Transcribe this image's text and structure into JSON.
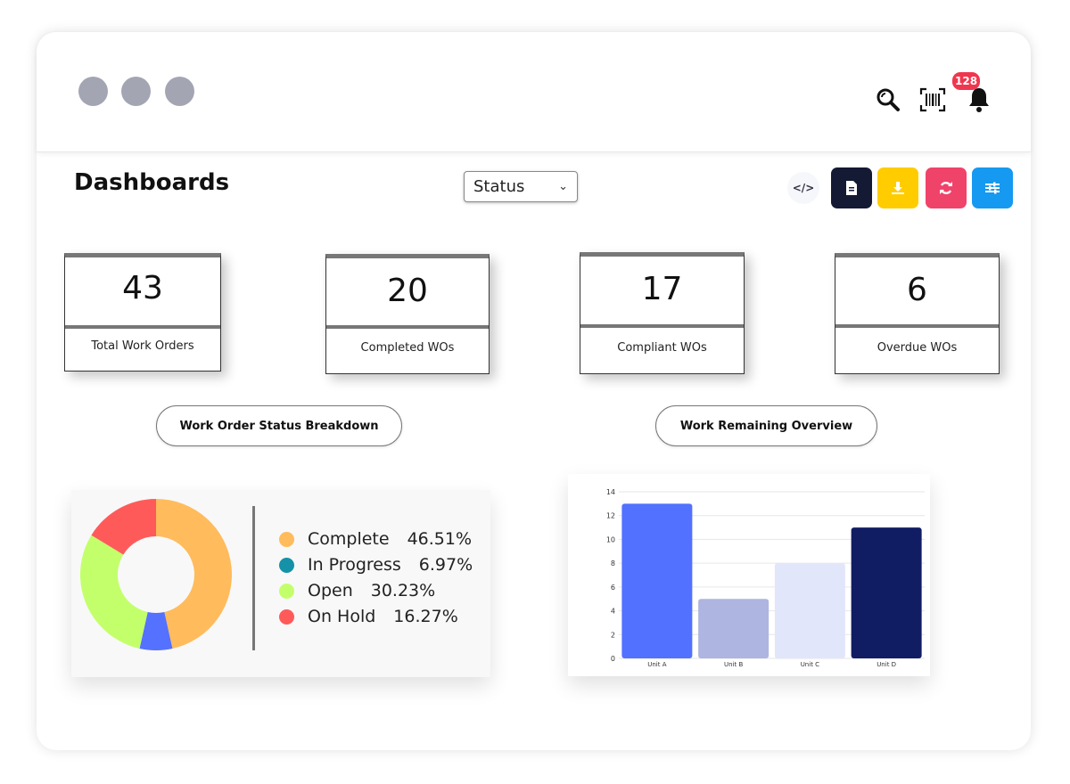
{
  "window": {
    "notifications_count": "128"
  },
  "page": {
    "title": "Dashboards",
    "status_select": "Status"
  },
  "toolbar": {
    "icons": [
      "code-icon",
      "document-icon",
      "download-icon",
      "refresh-icon",
      "sliders-icon"
    ],
    "colors": {
      "document": "#141a33",
      "download": "#ffcc00",
      "refresh": "#f0436a",
      "settings": "#1699f0"
    }
  },
  "stats": [
    {
      "value": "43",
      "label": "Total Work Orders"
    },
    {
      "value": "20",
      "label": "Completed WOs"
    },
    {
      "value": "17",
      "label": "Compliant WOs"
    },
    {
      "value": "6",
      "label": "Overdue WOs"
    }
  ],
  "sections": {
    "status_breakdown": "Work Order Status Breakdown",
    "work_remaining": "Work Remaining Overview"
  },
  "chart_data": [
    {
      "type": "pie",
      "categories": [
        "Complete",
        "In Progress",
        "Open",
        "On Hold"
      ],
      "values": [
        46.51,
        6.97,
        30.23,
        16.27
      ],
      "labels": [
        "46.51%",
        "6.97%",
        "30.23%",
        "16.27%"
      ],
      "colors": [
        "#ffbb5c",
        "#5571ff",
        "#c3ff6b",
        "#ff5a5a"
      ],
      "legend_colors": [
        "#ffbb5c",
        "#1592a8",
        "#c3ff6b",
        "#ff5a5a"
      ],
      "legend": "right"
    },
    {
      "type": "bar",
      "categories": [
        "Unit A",
        "Unit B",
        "Unit C",
        "Unit D"
      ],
      "values": [
        13,
        5,
        8,
        11
      ],
      "colors": [
        "#5271ff",
        "#adb5e0",
        "#e2e6fa",
        "#111d63"
      ],
      "ylim": [
        0,
        14
      ],
      "yticks": [
        "0",
        "2",
        "4",
        "6",
        "8",
        "10",
        "12",
        "14"
      ],
      "grid": true
    }
  ]
}
